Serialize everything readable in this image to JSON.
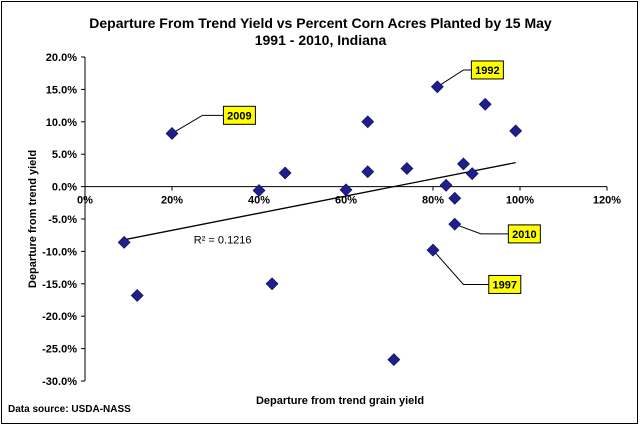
{
  "chart_data": {
    "type": "scatter",
    "title": "Departure From Trend Yield vs Percent Corn Acres Planted by 15 May",
    "subtitle": "1991 - 2010, Indiana",
    "xlabel": "Departure from trend grain yield",
    "ylabel": "Departure from trend yield",
    "source": "Data source: USDA-NASS",
    "xlim": [
      0,
      120
    ],
    "ylim": [
      -30,
      20
    ],
    "x_ticks": [
      "0%",
      "20%",
      "40%",
      "60%",
      "80%",
      "100%",
      "120%"
    ],
    "x_tick_values": [
      0,
      20,
      40,
      60,
      80,
      100,
      120
    ],
    "y_ticks": [
      "20.0%",
      "15.0%",
      "10.0%",
      "5.0%",
      "0.0%",
      "-5.0%",
      "-10.0%",
      "-15.0%",
      "-20.0%",
      "-25.0%",
      "-30.0%"
    ],
    "y_tick_values": [
      20,
      15,
      10,
      5,
      0,
      -5,
      -10,
      -15,
      -20,
      -25,
      -30
    ],
    "marker_color": "#1f1f8c",
    "callout_fill": "#ffff00",
    "points": [
      {
        "x": 9,
        "y": -8.6
      },
      {
        "x": 12,
        "y": -16.8
      },
      {
        "x": 20,
        "y": 8.2
      },
      {
        "x": 40,
        "y": -0.6
      },
      {
        "x": 43,
        "y": -15.0
      },
      {
        "x": 46,
        "y": 2.1
      },
      {
        "x": 60,
        "y": -0.5
      },
      {
        "x": 65,
        "y": 10.0
      },
      {
        "x": 65,
        "y": 2.3
      },
      {
        "x": 71,
        "y": -26.7
      },
      {
        "x": 74,
        "y": 2.8
      },
      {
        "x": 80,
        "y": -9.8
      },
      {
        "x": 81,
        "y": 15.4
      },
      {
        "x": 83,
        "y": 0.2
      },
      {
        "x": 85,
        "y": -1.8
      },
      {
        "x": 85,
        "y": -5.8
      },
      {
        "x": 87,
        "y": 3.5
      },
      {
        "x": 89,
        "y": 2.0
      },
      {
        "x": 92,
        "y": 12.7
      },
      {
        "x": 99,
        "y": 8.6
      }
    ],
    "trendline": {
      "x": [
        9,
        99
      ],
      "y": [
        -8.2,
        3.7
      ],
      "label": "R² = 0.1216",
      "label_at": {
        "x": 25,
        "y": -8.8
      }
    },
    "annotations": [
      {
        "text": "1992",
        "point": {
          "x": 81,
          "y": 15.4
        },
        "elbow": {
          "x": 87,
          "y": 18.0
        },
        "box": {
          "x": 92.5,
          "y": 18.0
        }
      },
      {
        "text": "2009",
        "point": {
          "x": 20,
          "y": 8.2
        },
        "elbow": {
          "x": 27,
          "y": 11.0
        },
        "box": {
          "x": 35.5,
          "y": 11.0
        }
      },
      {
        "text": "2010",
        "point": {
          "x": 85,
          "y": -5.8
        },
        "elbow": {
          "x": 91,
          "y": -7.3
        },
        "box": {
          "x": 101,
          "y": -7.3
        }
      },
      {
        "text": "1997",
        "point": {
          "x": 80,
          "y": -9.8
        },
        "elbow": {
          "x": 87,
          "y": -15.1
        },
        "box": {
          "x": 96.5,
          "y": -15.1
        }
      }
    ]
  }
}
